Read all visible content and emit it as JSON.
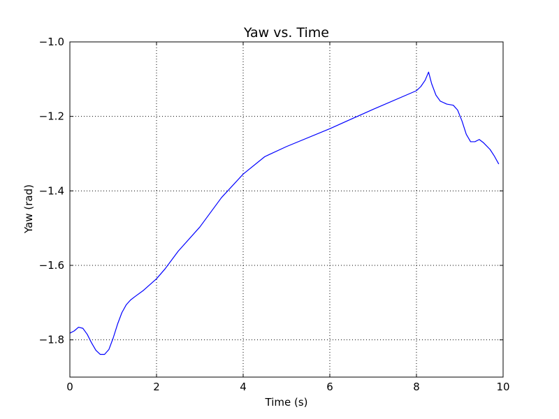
{
  "chart_data": {
    "type": "line",
    "title": "Yaw vs. Time",
    "xlabel": "Time (s)",
    "ylabel": "Yaw (rad)",
    "xlim": [
      0,
      10
    ],
    "ylim": [
      -1.9,
      -1.0
    ],
    "xticks": [
      0,
      2,
      4,
      6,
      8,
      10
    ],
    "xtick_labels": [
      "0",
      "2",
      "4",
      "6",
      "8",
      "10"
    ],
    "yticks": [
      -1.0,
      -1.2,
      -1.4,
      -1.6,
      -1.8
    ],
    "ytick_labels": [
      "−1.0",
      "−1.2",
      "−1.4",
      "−1.6",
      "−1.8"
    ],
    "grid": true,
    "colors": {
      "series": "#0000ff",
      "grid": "#000000",
      "frame": "#000000"
    },
    "series": [
      {
        "x": [
          0.0,
          0.1,
          0.2,
          0.3,
          0.4,
          0.5,
          0.6,
          0.7,
          0.8,
          0.9,
          1.0,
          1.1,
          1.2,
          1.3,
          1.4,
          1.5,
          1.7,
          2.0,
          2.2,
          2.5,
          3.0,
          3.5,
          4.0,
          4.5,
          5.0,
          6.0,
          7.0,
          8.0,
          8.1,
          8.2,
          8.28,
          8.35,
          8.45,
          8.55,
          8.7,
          8.85,
          8.95,
          9.05,
          9.15,
          9.25,
          9.35,
          9.45,
          9.55,
          9.7,
          9.8,
          9.9
        ],
        "y": [
          -1.782,
          -1.776,
          -1.766,
          -1.769,
          -1.785,
          -1.808,
          -1.828,
          -1.839,
          -1.839,
          -1.826,
          -1.795,
          -1.758,
          -1.727,
          -1.706,
          -1.693,
          -1.684,
          -1.667,
          -1.636,
          -1.609,
          -1.562,
          -1.497,
          -1.418,
          -1.355,
          -1.308,
          -1.281,
          -1.233,
          -1.181,
          -1.131,
          -1.12,
          -1.103,
          -1.081,
          -1.112,
          -1.143,
          -1.159,
          -1.167,
          -1.17,
          -1.183,
          -1.212,
          -1.248,
          -1.268,
          -1.268,
          -1.262,
          -1.271,
          -1.289,
          -1.307,
          -1.328
        ]
      }
    ]
  }
}
